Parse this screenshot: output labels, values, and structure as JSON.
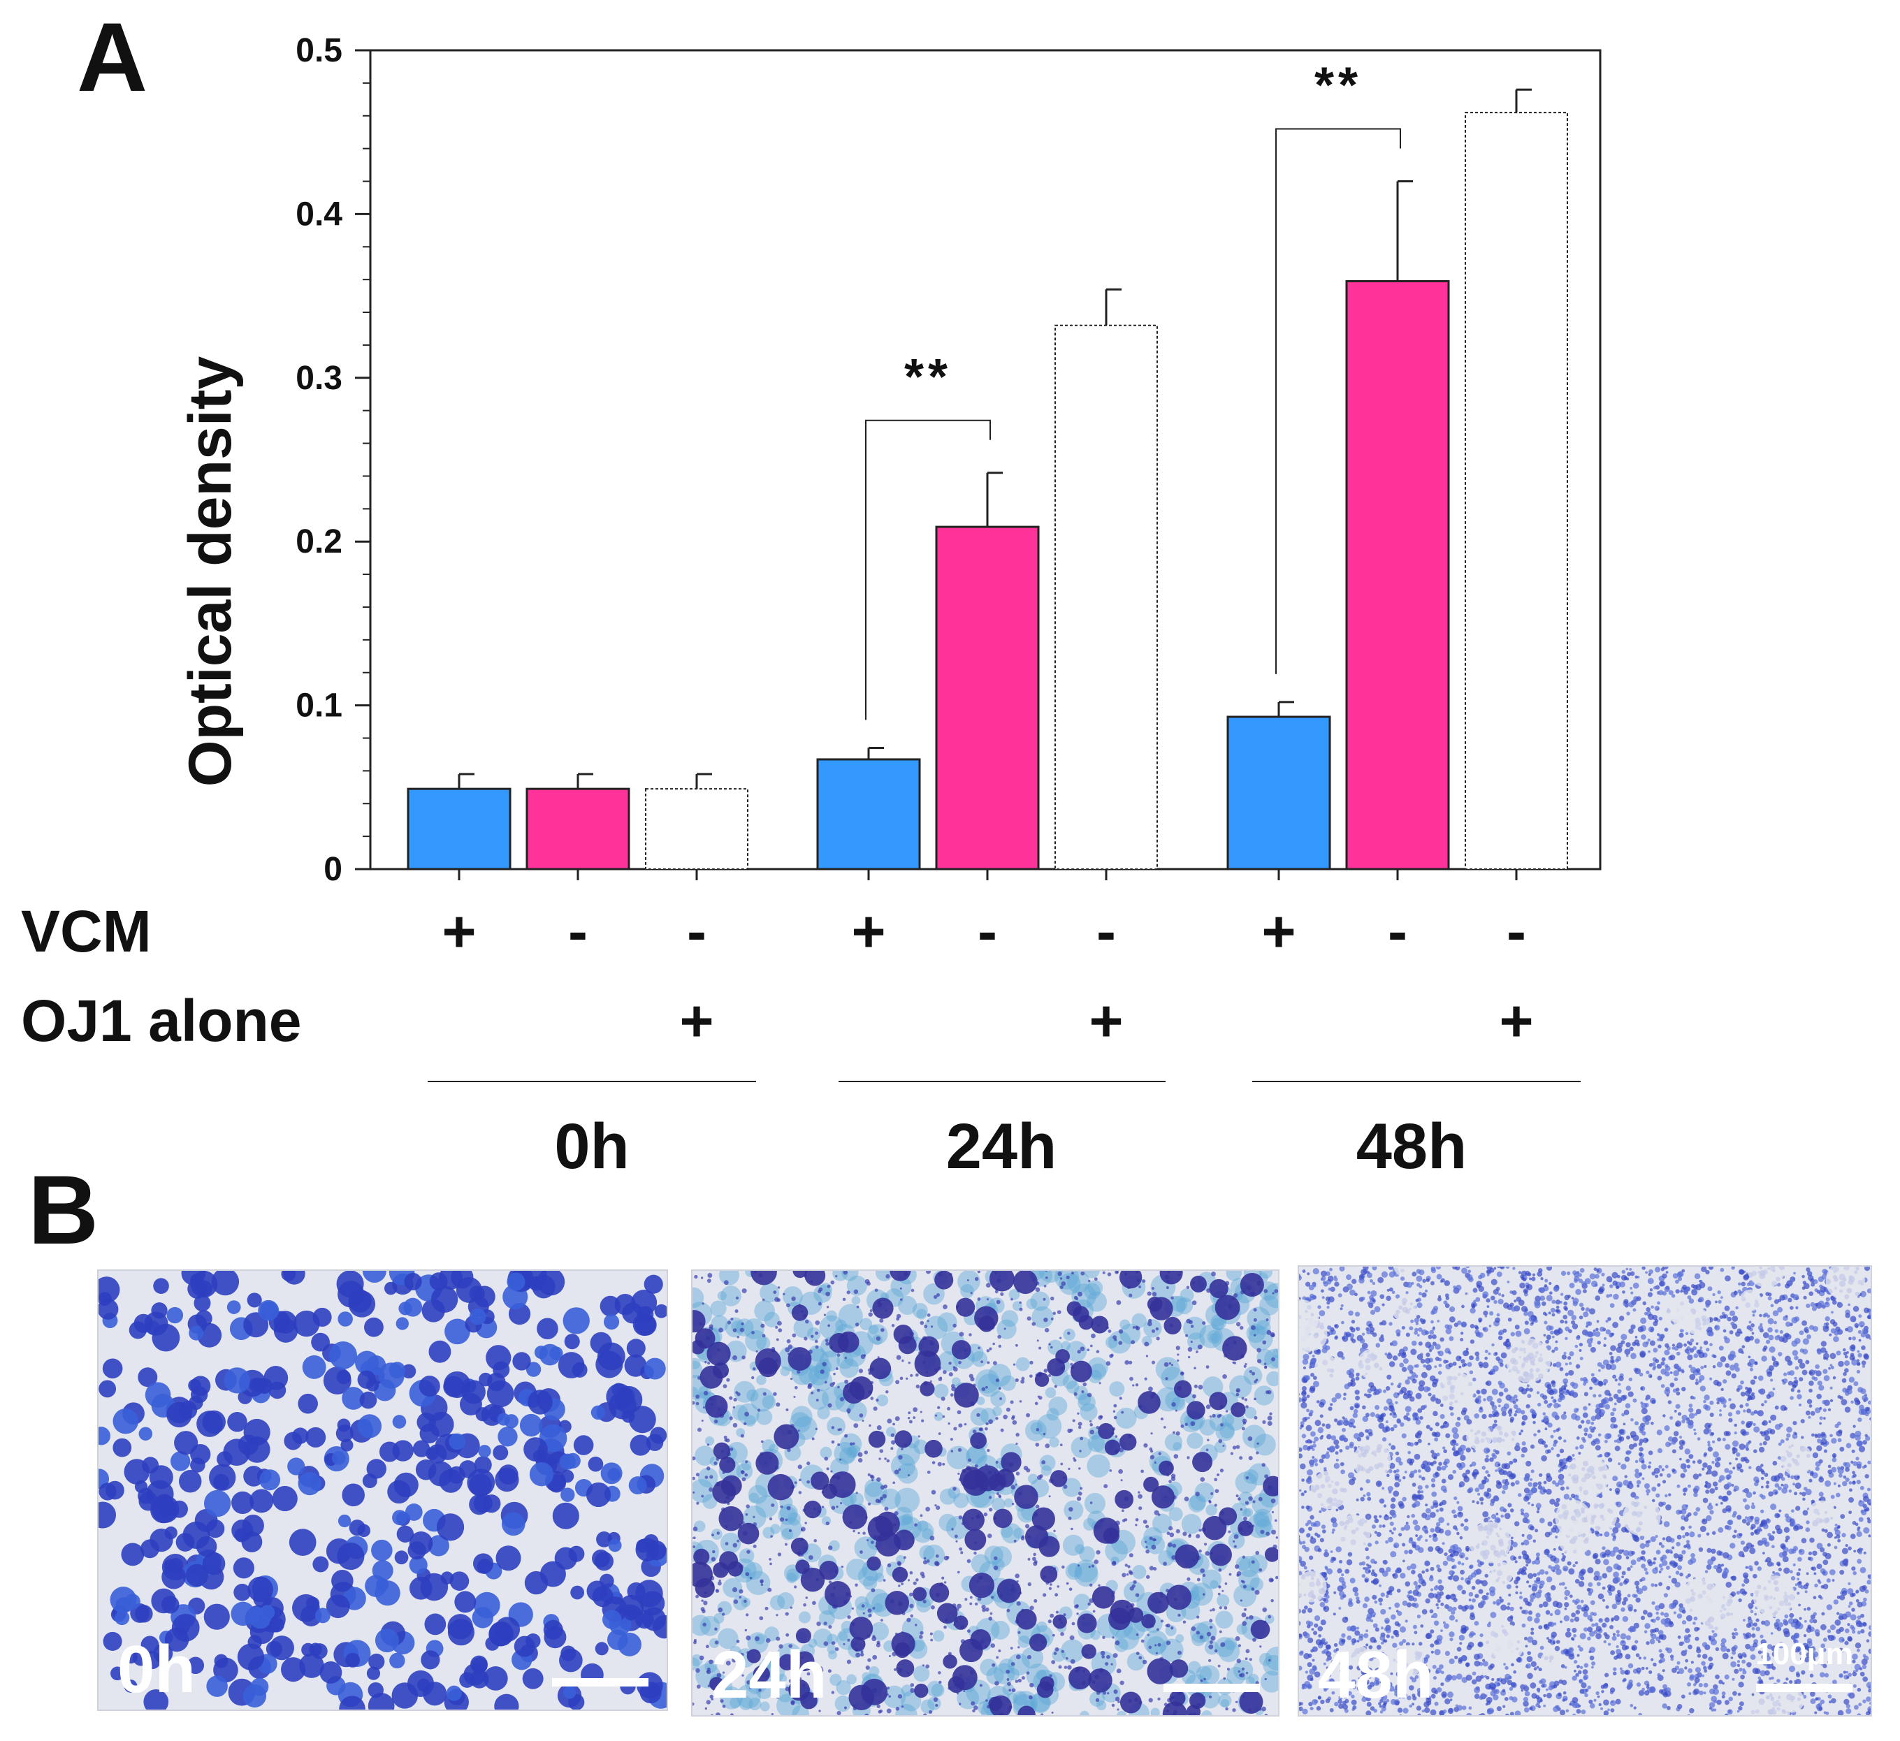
{
  "panels": {
    "a_label": "A",
    "b_label": "B"
  },
  "colors": {
    "vcm": "#3399ff",
    "no_vcm": "#ff3399",
    "oj1_alone": "#ffffff",
    "stain_bg": "#e3e6ee",
    "stain_cell": "#2e3fc0",
    "stain_light": "#5fa8d8"
  },
  "chart_data": {
    "type": "bar",
    "title": "",
    "xlabel": "",
    "ylabel": "Optical density",
    "ylim": [
      0,
      0.5
    ],
    "y_ticks": [
      "0",
      "0.1",
      "0.2",
      "0.3",
      "0.4",
      "0.5"
    ],
    "categories": [
      "0h",
      "24h",
      "48h"
    ],
    "row_labels": {
      "vcm": "VCM",
      "oj1": "OJ1 alone"
    },
    "bar_conditions": [
      {
        "vcm": "+",
        "oj1": ""
      },
      {
        "vcm": "-",
        "oj1": ""
      },
      {
        "vcm": "-",
        "oj1": "+"
      }
    ],
    "series": [
      {
        "values": [
          0.049,
          0.067,
          0.093
        ],
        "errors": [
          0.009,
          0.007,
          0.009
        ],
        "color": "#3399ff"
      },
      {
        "values": [
          0.049,
          0.209,
          0.359
        ],
        "errors": [
          0.009,
          0.033,
          0.061
        ],
        "color": "#ff3399"
      },
      {
        "values": [
          0.049,
          0.332,
          0.462
        ],
        "errors": [
          0.009,
          0.022,
          0.014
        ],
        "color": "#ffffff"
      }
    ],
    "significance": [
      {
        "group": "24h",
        "between": [
          0,
          1
        ],
        "label": "**"
      },
      {
        "group": "48h",
        "between": [
          0,
          1
        ],
        "label": "**"
      }
    ]
  },
  "micrographs": [
    {
      "label": "0h",
      "density": "round-cells"
    },
    {
      "label": "24h",
      "density": "mixed"
    },
    {
      "label": "48h",
      "density": "fibrous",
      "scale_label": "100μm"
    }
  ]
}
